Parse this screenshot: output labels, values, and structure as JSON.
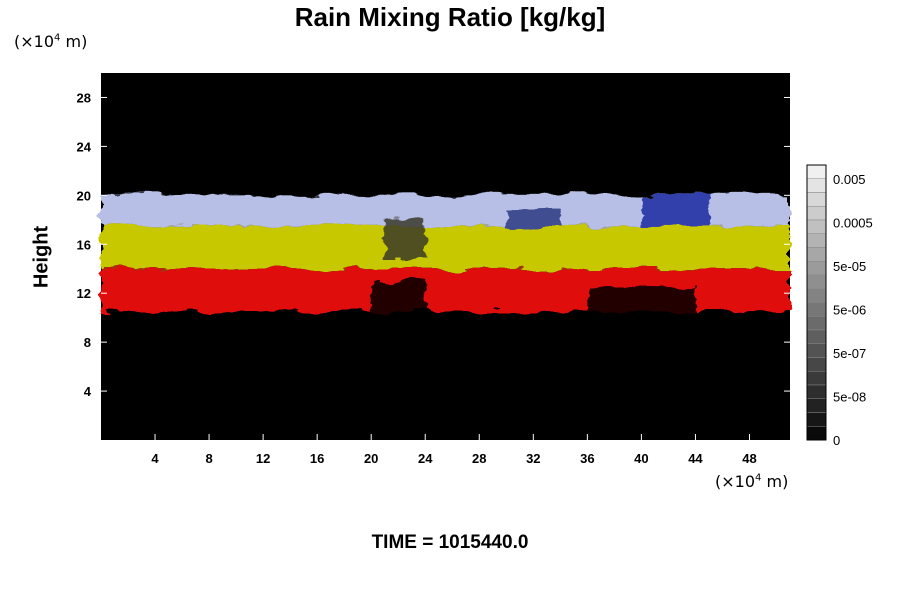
{
  "chart_data": {
    "type": "heatmap",
    "title": "Rain Mixing Ratio [kg/kg]",
    "ylabel": "Height",
    "xlabel": "",
    "unit_prefix": "(×10",
    "unit_exponent": "4",
    "unit_suffix": " m)",
    "x_ticks": [
      4,
      8,
      12,
      16,
      20,
      24,
      28,
      32,
      36,
      40,
      44,
      48
    ],
    "y_ticks": [
      4,
      8,
      12,
      16,
      20,
      24,
      28
    ],
    "xlim": [
      0,
      51
    ],
    "ylim": [
      0,
      30
    ],
    "colorbar_labels": [
      "0.005",
      "0.0005",
      "5e-05",
      "5e-06",
      "5e-07",
      "5e-08",
      "0"
    ],
    "layers": [
      {
        "name": "white-blue",
        "color": "#b8bfe6",
        "band": [
          17.5,
          20
        ]
      },
      {
        "name": "yellow",
        "color": "#c8c800",
        "band": [
          14,
          17.5
        ]
      },
      {
        "name": "red",
        "color": "#e01010",
        "band": [
          10.5,
          14
        ]
      }
    ],
    "background": "#000000"
  },
  "footer": {
    "time": "TIME = 1015440.0"
  }
}
